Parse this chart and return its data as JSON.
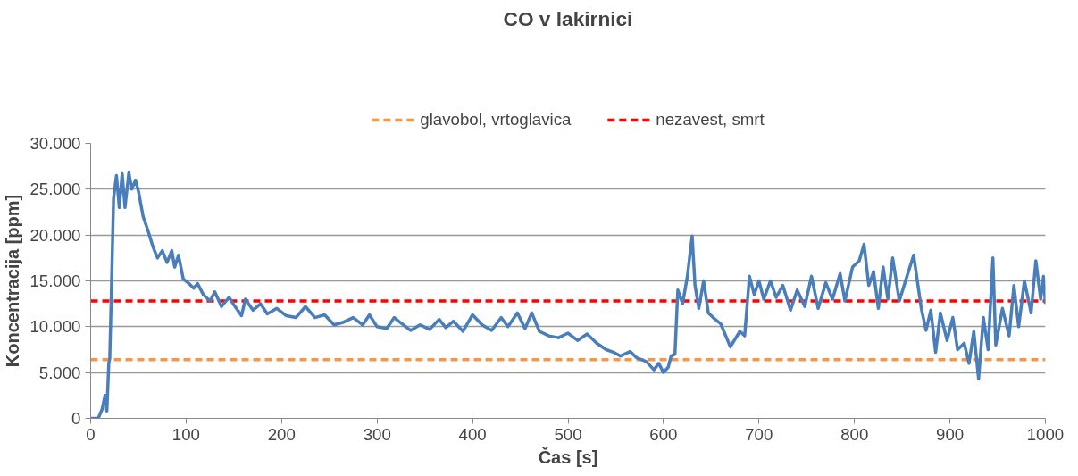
{
  "chart_data": {
    "type": "line",
    "title": "CO v lakirnici",
    "xlabel": "Čas [s]",
    "ylabel": "Koncentracija [ppm]",
    "xlim": [
      0,
      1000
    ],
    "xticks": [
      0,
      100,
      200,
      300,
      400,
      500,
      600,
      700,
      800,
      900,
      1000
    ],
    "ylim": [
      0,
      30000
    ],
    "yticks": [
      {
        "value": 0,
        "label": "0"
      },
      {
        "value": 5000,
        "label": "5.000"
      },
      {
        "value": 10000,
        "label": "10.000"
      },
      {
        "value": 15000,
        "label": "15.000"
      },
      {
        "value": 20000,
        "label": "20.000"
      },
      {
        "value": 25000,
        "label": "25.000"
      },
      {
        "value": 30000,
        "label": "30.000"
      }
    ],
    "grid": "y",
    "legend": "top",
    "marker": "none",
    "line_style": "solid",
    "series": [
      {
        "color": "#4a7ebb",
        "x": [
          0,
          8,
          12,
          15,
          17,
          19,
          20,
          22,
          24,
          27,
          30,
          33,
          36,
          40,
          43,
          47,
          50,
          55,
          60,
          65,
          70,
          75,
          80,
          85,
          88,
          92,
          97,
          102,
          108,
          112,
          118,
          125,
          130,
          137,
          145,
          150,
          158,
          162,
          170,
          178,
          185,
          195,
          205,
          215,
          225,
          235,
          245,
          255,
          265,
          275,
          285,
          292,
          300,
          310,
          318,
          325,
          335,
          345,
          355,
          365,
          372,
          380,
          390,
          400,
          410,
          420,
          430,
          437,
          447,
          455,
          462,
          470,
          480,
          490,
          500,
          510,
          520,
          530,
          540,
          548,
          555,
          565,
          572,
          582,
          590,
          595,
          600,
          605,
          608,
          612,
          615,
          620,
          625,
          630,
          633,
          637,
          642,
          647,
          652,
          660,
          670,
          680,
          685,
          690,
          695,
          700,
          705,
          712,
          718,
          725,
          733,
          740,
          748,
          755,
          762,
          770,
          777,
          785,
          790,
          798,
          805,
          810,
          815,
          820,
          825,
          830,
          835,
          840,
          847,
          855,
          862,
          870,
          875,
          880,
          885,
          890,
          897,
          903,
          908,
          915,
          920,
          925,
          930,
          935,
          940,
          945,
          948,
          955,
          962,
          967,
          972,
          978,
          985,
          990,
          995,
          998,
          1000
        ],
        "values": [
          0,
          0,
          1000,
          2500,
          800,
          6000,
          6500,
          15000,
          24000,
          26500,
          23000,
          26700,
          23000,
          26800,
          25000,
          26000,
          24800,
          22000,
          20500,
          18800,
          17500,
          18300,
          17000,
          18300,
          16500,
          17800,
          15200,
          14800,
          14200,
          14700,
          13500,
          12800,
          13800,
          12200,
          13200,
          12400,
          11200,
          13000,
          11800,
          12500,
          11400,
          12000,
          11200,
          11000,
          12200,
          11000,
          11300,
          10200,
          10500,
          11000,
          10200,
          11300,
          10000,
          9800,
          11000,
          10400,
          9600,
          10200,
          9700,
          10800,
          9900,
          10600,
          9500,
          11300,
          10200,
          9600,
          11000,
          10000,
          11500,
          9800,
          11500,
          9500,
          9000,
          8800,
          9300,
          8500,
          9200,
          8200,
          7500,
          7200,
          6800,
          7300,
          6600,
          6200,
          5300,
          6000,
          5000,
          5600,
          6800,
          7000,
          14000,
          12500,
          15500,
          19900,
          14500,
          12000,
          15000,
          11500,
          11000,
          10300,
          7800,
          9500,
          9000,
          15500,
          13500,
          15000,
          13000,
          15000,
          13200,
          14500,
          11800,
          14000,
          12200,
          15500,
          12000,
          14800,
          13000,
          15800,
          12800,
          16500,
          17200,
          19000,
          14500,
          16000,
          12000,
          16500,
          13000,
          17500,
          12800,
          15500,
          17800,
          12000,
          9600,
          11800,
          7200,
          11500,
          8500,
          11000,
          7500,
          8200,
          6000,
          9500,
          4300,
          11000,
          7500,
          17500,
          8000,
          12000,
          9000,
          14500,
          10000,
          15000,
          11500,
          17200,
          13000,
          15500,
          12500
        ]
      }
    ],
    "ref_lines": [
      {
        "axis": "y",
        "value": 6400,
        "label": "glavobol, vrtoglavica",
        "color": "#f79646",
        "line_style": "dashed"
      },
      {
        "axis": "y",
        "value": 12800,
        "label": "nezavest, smrt",
        "color": "#ff0000",
        "line_style": "dashed"
      }
    ]
  }
}
